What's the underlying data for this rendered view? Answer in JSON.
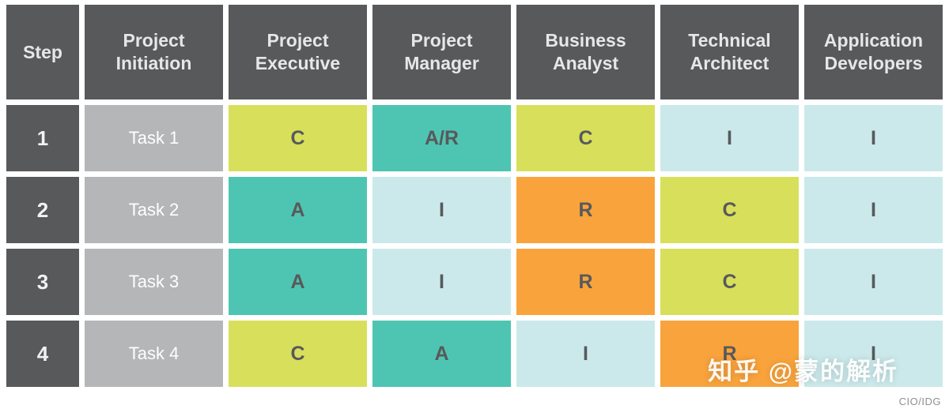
{
  "colors": {
    "header_bg": "#58595B",
    "step_bg": "#58595B",
    "task_bg": "#B5B6B8",
    "consulted": "#D8DF5B",
    "accountable": "#4EC5B2",
    "responsible": "#F9A33C",
    "informed": "#CBE9EB",
    "cell_text": "#58595B",
    "header_text": "#E6E7E8",
    "page_bg": "#FFFFFF"
  },
  "table": {
    "headers": [
      "Step",
      "Project Initiation",
      "Project Executive",
      "Project Manager",
      "Business Analyst",
      "Technical Architect",
      "Application Developers"
    ],
    "rows": [
      {
        "step": "1",
        "task": "Task 1",
        "cells": [
          {
            "text": "C",
            "bg": "#D8DF5B"
          },
          {
            "text": "A/R",
            "bg": "#4EC5B2"
          },
          {
            "text": "C",
            "bg": "#D8DF5B"
          },
          {
            "text": "I",
            "bg": "#CBE9EB"
          },
          {
            "text": "I",
            "bg": "#CBE9EB"
          }
        ]
      },
      {
        "step": "2",
        "task": "Task 2",
        "cells": [
          {
            "text": "A",
            "bg": "#4EC5B2"
          },
          {
            "text": "I",
            "bg": "#CBE9EB"
          },
          {
            "text": "R",
            "bg": "#F9A33C"
          },
          {
            "text": "C",
            "bg": "#D8DF5B"
          },
          {
            "text": "I",
            "bg": "#CBE9EB"
          }
        ]
      },
      {
        "step": "3",
        "task": "Task 3",
        "cells": [
          {
            "text": "A",
            "bg": "#4EC5B2"
          },
          {
            "text": "I",
            "bg": "#CBE9EB"
          },
          {
            "text": "R",
            "bg": "#F9A33C"
          },
          {
            "text": "C",
            "bg": "#D8DF5B"
          },
          {
            "text": "I",
            "bg": "#CBE9EB"
          }
        ]
      },
      {
        "step": "4",
        "task": "Task 4",
        "cells": [
          {
            "text": "C",
            "bg": "#D8DF5B"
          },
          {
            "text": "A",
            "bg": "#4EC5B2"
          },
          {
            "text": "I",
            "bg": "#CBE9EB"
          },
          {
            "text": "R",
            "bg": "#F9A33C"
          },
          {
            "text": "I",
            "bg": "#CBE9EB"
          }
        ]
      }
    ]
  },
  "watermark": {
    "text": "知乎 @蒙的解析"
  },
  "credit": "CIO/IDG",
  "chart_data": {
    "type": "table",
    "title": "",
    "columns": [
      "Step",
      "Project Initiation",
      "Project Executive",
      "Project Manager",
      "Business Analyst",
      "Technical Architect",
      "Application Developers"
    ],
    "rows": [
      [
        "1",
        "Task 1",
        "C",
        "A/R",
        "C",
        "I",
        "I"
      ],
      [
        "2",
        "Task 2",
        "A",
        "I",
        "R",
        "C",
        "I"
      ],
      [
        "3",
        "Task 3",
        "A",
        "I",
        "R",
        "C",
        "I"
      ],
      [
        "4",
        "Task 4",
        "C",
        "A",
        "I",
        "R",
        "I"
      ]
    ],
    "cell_color_coding": {
      "C": "#D8DF5B",
      "A": "#4EC5B2",
      "A/R": "#4EC5B2",
      "R": "#F9A33C",
      "I": "#CBE9EB"
    },
    "layout_hints": {
      "grid": "white gaps between cells",
      "legend_position": "none"
    }
  }
}
